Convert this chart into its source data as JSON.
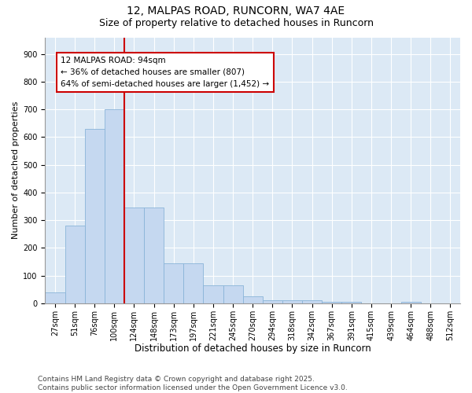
{
  "title1": "12, MALPAS ROAD, RUNCORN, WA7 4AE",
  "title2": "Size of property relative to detached houses in Runcorn",
  "xlabel": "Distribution of detached houses by size in Runcorn",
  "ylabel": "Number of detached properties",
  "categories": [
    "27sqm",
    "51sqm",
    "76sqm",
    "100sqm",
    "124sqm",
    "148sqm",
    "173sqm",
    "197sqm",
    "221sqm",
    "245sqm",
    "270sqm",
    "294sqm",
    "318sqm",
    "342sqm",
    "367sqm",
    "391sqm",
    "415sqm",
    "439sqm",
    "464sqm",
    "488sqm",
    "512sqm"
  ],
  "values": [
    40,
    280,
    630,
    700,
    345,
    345,
    145,
    145,
    65,
    65,
    25,
    10,
    10,
    10,
    5,
    5,
    0,
    0,
    5,
    0,
    0
  ],
  "bar_color": "#c5d8f0",
  "bar_edge_color": "#8ab4d8",
  "vline_x_index": 3,
  "vline_color": "#cc0000",
  "annotation_text_line1": "12 MALPAS ROAD: 94sqm",
  "annotation_text_line2": "← 36% of detached houses are smaller (807)",
  "annotation_text_line3": "64% of semi-detached houses are larger (1,452) →",
  "ylim": [
    0,
    960
  ],
  "yticks": [
    0,
    100,
    200,
    300,
    400,
    500,
    600,
    700,
    800,
    900
  ],
  "background_color": "#dce9f5",
  "grid_color": "#ffffff",
  "footer": "Contains HM Land Registry data © Crown copyright and database right 2025.\nContains public sector information licensed under the Open Government Licence v3.0.",
  "title1_fontsize": 10,
  "title2_fontsize": 9,
  "xlabel_fontsize": 8.5,
  "ylabel_fontsize": 8,
  "tick_fontsize": 7,
  "annotation_fontsize": 7.5,
  "footer_fontsize": 6.5
}
